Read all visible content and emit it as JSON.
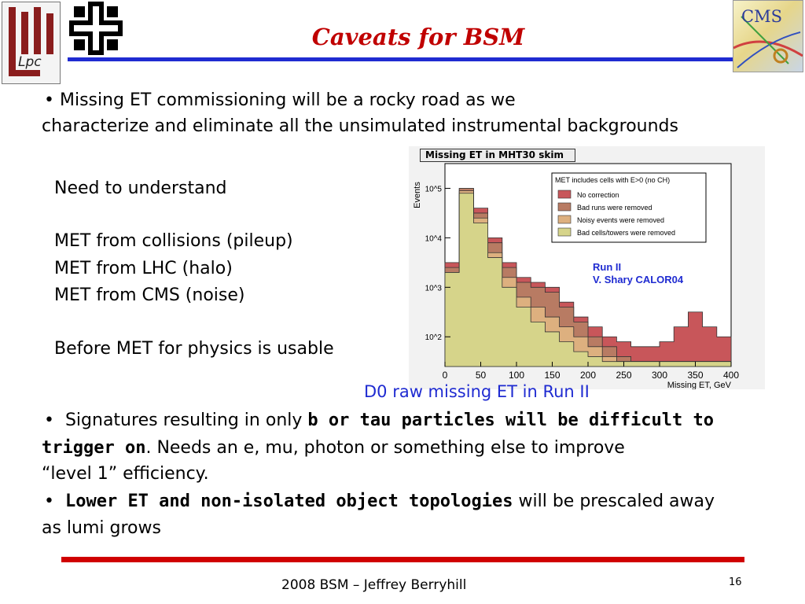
{
  "slide": {
    "title": "Caveats for BSM",
    "bullet1_line1": "•   Missing ET commissioning will be a rocky road as we",
    "bullet1_line2": "characterize and eliminate all the unsimulated instrumental backgrounds",
    "need_heading": "Need to understand",
    "met_items": [
      "MET from collisions (pileup)",
      "MET from LHC (halo)",
      "MET from CMS (noise)"
    ],
    "before_text": "Before MET for physics is usable",
    "caption": "D0 raw missing ET in Run II",
    "bullet2_pre": "Signatures resulting in only ",
    "bullet2_bold1": "b or tau particles will be difficult to",
    "bullet2_bold2": "trigger on",
    "bullet2_post": ".  Needs an e, mu, photon or something else to improve",
    "bullet2_line3": "“level 1” efficiency.",
    "bullet3_bold": "Lower ET and non-isolated object topologies",
    "bullet3_post": " will be prescaled away",
    "bullet3_line2": "as lumi grows",
    "footer": "2008 BSM – Jeffrey Berryhill",
    "page_number": "16",
    "logo_left_text": "Lpc",
    "logo_right_text": "CMS"
  },
  "chart_data": {
    "type": "area",
    "title": "Missing ET in MHT30 skim",
    "xlabel": "Missing ET, GeV",
    "ylabel": "Events",
    "xlim": [
      0,
      400
    ],
    "ylim_log10": [
      1.4,
      5.5
    ],
    "x_ticks": [
      0,
      50,
      100,
      150,
      200,
      250,
      300,
      350,
      400
    ],
    "y_ticks": [
      {
        "label": "10^5",
        "exp": 5
      },
      {
        "label": "10^4",
        "exp": 4
      },
      {
        "label": "10^3",
        "exp": 3
      },
      {
        "label": "10^2",
        "exp": 2
      }
    ],
    "legend_title": "MET includes cells with E>0 (no CH)",
    "annotation_lines": [
      "Run II",
      "V. Shary CALOR04"
    ],
    "x": [
      0,
      20,
      40,
      60,
      80,
      100,
      120,
      140,
      160,
      180,
      200,
      220,
      240,
      260,
      280,
      300,
      320,
      340,
      360,
      380,
      400
    ],
    "series": [
      {
        "name": "No correction",
        "color": "#c8565a",
        "log10": [
          3.5,
          5.0,
          4.6,
          4.0,
          3.5,
          3.2,
          3.1,
          3.0,
          2.7,
          2.4,
          2.2,
          2.0,
          1.9,
          1.8,
          1.8,
          1.9,
          2.2,
          2.5,
          2.2,
          2.0,
          1.7
        ]
      },
      {
        "name": "Bad runs were removed",
        "color": "#b87b63",
        "log10": [
          3.4,
          5.0,
          4.5,
          3.9,
          3.4,
          3.1,
          3.0,
          2.9,
          2.6,
          2.3,
          2.0,
          1.8,
          1.6,
          1.5,
          1.5,
          1.5,
          1.5,
          1.5,
          1.5,
          1.5,
          1.5
        ]
      },
      {
        "name": "Noisy events were removed",
        "color": "#ddb07f",
        "log10": [
          3.3,
          4.95,
          4.4,
          3.7,
          3.2,
          2.8,
          2.6,
          2.4,
          2.2,
          2.0,
          1.8,
          1.6,
          1.5,
          1.5,
          1.5,
          1.5,
          1.5,
          1.5,
          1.5,
          1.5,
          1.5
        ]
      },
      {
        "name": "Bad cells/towers were removed",
        "color": "#d6d48a",
        "log10": [
          3.3,
          4.9,
          4.3,
          3.6,
          3.0,
          2.6,
          2.3,
          2.1,
          1.9,
          1.7,
          1.6,
          1.5,
          1.5,
          1.5,
          1.5,
          1.5,
          1.5,
          1.5,
          1.5,
          1.5,
          1.5
        ]
      }
    ]
  }
}
